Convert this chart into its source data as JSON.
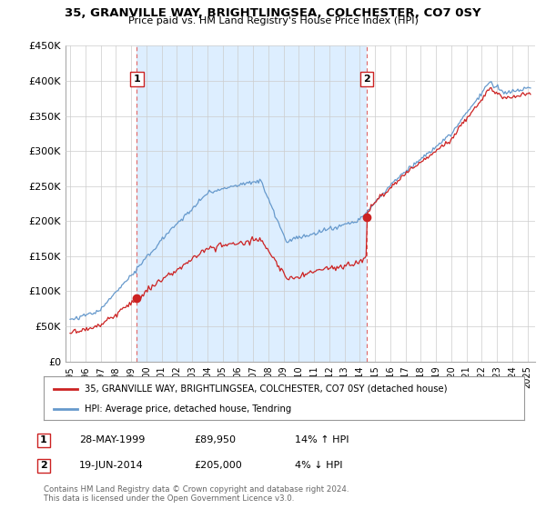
{
  "title1": "35, GRANVILLE WAY, BRIGHTLINGSEA, COLCHESTER, CO7 0SY",
  "title2": "Price paid vs. HM Land Registry's House Price Index (HPI)",
  "ylim": [
    0,
    450000
  ],
  "yticks": [
    0,
    50000,
    100000,
    150000,
    200000,
    250000,
    300000,
    350000,
    400000,
    450000
  ],
  "ytick_labels": [
    "£0",
    "£50K",
    "£100K",
    "£150K",
    "£200K",
    "£250K",
    "£300K",
    "£350K",
    "£400K",
    "£450K"
  ],
  "sale1_year": 1999.38,
  "sale1_price": 89950,
  "sale2_year": 2014.46,
  "sale2_price": 205000,
  "red_line_color": "#cc2222",
  "blue_line_color": "#6699cc",
  "marker_color": "#cc2222",
  "vline_color": "#dd6666",
  "fill_color": "#ddeeff",
  "legend_label1": "35, GRANVILLE WAY, BRIGHTLINGSEA, COLCHESTER, CO7 0SY (detached house)",
  "legend_label2": "HPI: Average price, detached house, Tendring",
  "annotation1_date": "28-MAY-1999",
  "annotation1_price": "£89,950",
  "annotation1_hpi": "14% ↑ HPI",
  "annotation2_date": "19-JUN-2014",
  "annotation2_price": "£205,000",
  "annotation2_hpi": "4% ↓ HPI",
  "footer": "Contains HM Land Registry data © Crown copyright and database right 2024.\nThis data is licensed under the Open Government Licence v3.0.",
  "background_color": "#ffffff",
  "grid_color": "#cccccc"
}
